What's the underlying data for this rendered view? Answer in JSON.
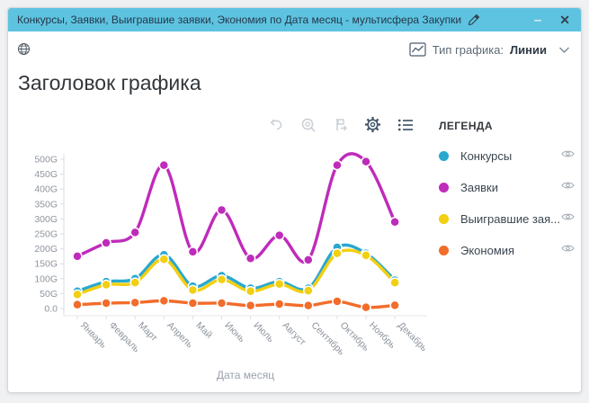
{
  "window": {
    "title": "Конкурсы, Заявки, Выигравшие заявки, Экономия по Дата месяц - мультисфера Закупки",
    "minimize_label": "–",
    "close_label": "✕",
    "titlebar_color": "#5ec3e0"
  },
  "header": {
    "chart_type_label": "Тип графика:",
    "chart_type_value": "Линии",
    "heading": "Заголовок графика"
  },
  "icons": {
    "titlebar": "pencil-edit",
    "top_left": "globe-multisphere",
    "chart_type": "line-chart",
    "dropdown": "chevron-down",
    "toolbar": [
      "undo",
      "zoom-magnifier",
      "drill-flag",
      "gear-settings",
      "list-menu"
    ],
    "legend_row": "eye-visibility"
  },
  "legend": {
    "title": "ЛЕГЕНДА",
    "items": [
      {
        "label": "Конкурсы",
        "color": "#29a8d0"
      },
      {
        "label": "Заявки",
        "color": "#bf2bba"
      },
      {
        "label": "Выигравшие зая...",
        "color": "#f2cf10"
      },
      {
        "label": "Экономия",
        "color": "#f26c2a"
      }
    ]
  },
  "chart_data": {
    "type": "line",
    "title": "Заголовок графика",
    "xlabel": "Дата месяц",
    "ylabel": "",
    "unit": "G",
    "ylim": [
      0,
      500
    ],
    "y_tick_step": 50,
    "y_ticks": [
      "0.0",
      "50G",
      "100G",
      "150G",
      "200G",
      "250G",
      "300G",
      "350G",
      "400G",
      "450G",
      "500G"
    ],
    "grid": false,
    "legend_position": "right",
    "categories": [
      "Январь",
      "Февраль",
      "Март",
      "Апрель",
      "Май",
      "Июнь",
      "Июль",
      "Август",
      "Сентябрь",
      "Октябрь",
      "Ноябрь",
      "Декабрь"
    ],
    "series": [
      {
        "name": "Конкурсы",
        "color": "#29a8d0",
        "values": [
          58,
          90,
          100,
          180,
          75,
          110,
          68,
          90,
          68,
          205,
          185,
          95
        ]
      },
      {
        "name": "Заявки",
        "color": "#bf2bba",
        "values": [
          175,
          220,
          255,
          480,
          190,
          330,
          168,
          245,
          163,
          480,
          492,
          290
        ]
      },
      {
        "name": "Выигравшие заявки",
        "color": "#f2cf10",
        "values": [
          47,
          80,
          87,
          165,
          62,
          97,
          58,
          82,
          60,
          185,
          178,
          87
        ]
      },
      {
        "name": "Экономия",
        "color": "#f26c2a",
        "values": [
          13,
          18,
          20,
          26,
          18,
          18,
          10,
          15,
          10,
          24,
          4,
          11
        ]
      }
    ]
  }
}
